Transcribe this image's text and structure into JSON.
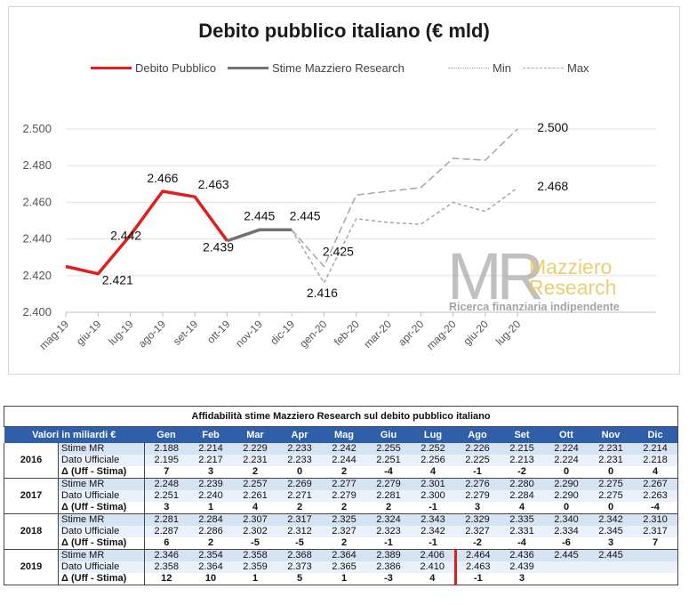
{
  "chart_data": {
    "type": "line",
    "title": "Debito pubblico italiano (€ mld)",
    "x": [
      "mag-19",
      "giu-19",
      "lug-19",
      "ago-19",
      "set-19",
      "ott-19",
      "nov-19",
      "dic-19",
      "gen-20",
      "feb-20",
      "mar-20",
      "apr-20",
      "mag-20",
      "giu-20",
      "lug-20"
    ],
    "ylim": [
      2400,
      2500
    ],
    "yticks": [
      "2.400",
      "2.420",
      "2.440",
      "2.460",
      "2.480",
      "2.500"
    ],
    "grid": true,
    "legend_position": "top",
    "series": [
      {
        "name": "Debito Pubblico",
        "color": "#e21d1d",
        "style": "solid",
        "values": [
          2425,
          2421,
          2442,
          2466,
          2463,
          2439,
          null,
          null,
          null,
          null,
          null,
          null,
          null,
          null,
          null
        ]
      },
      {
        "name": "Stime Mazziero Research",
        "color": "#777072",
        "style": "solid",
        "values": [
          null,
          null,
          null,
          null,
          null,
          2439,
          2445,
          2445,
          null,
          null,
          null,
          null,
          null,
          null,
          null
        ]
      },
      {
        "name": "Min",
        "color": "#a6a6a6",
        "style": "dotted",
        "values": [
          null,
          null,
          null,
          null,
          null,
          null,
          null,
          2445,
          2416,
          2451,
          2449,
          2448,
          2460,
          2455,
          2468
        ]
      },
      {
        "name": "Max",
        "color": "#a6a6a6",
        "style": "dashed",
        "values": [
          null,
          null,
          null,
          null,
          null,
          null,
          null,
          2445,
          2425,
          2464,
          2466,
          2468,
          2484,
          2483,
          2500
        ]
      }
    ],
    "data_labels": [
      {
        "x": "giu-19",
        "value": 2421,
        "text": "2.421"
      },
      {
        "x": "lug-19",
        "value": 2442,
        "text": "2.442"
      },
      {
        "x": "ago-19",
        "value": 2466,
        "text": "2.466"
      },
      {
        "x": "set-19",
        "value": 2463,
        "text": "2.463"
      },
      {
        "x": "ott-19",
        "value": 2439,
        "text": "2.439"
      },
      {
        "x": "nov-19",
        "value": 2445,
        "text": "2.445"
      },
      {
        "x": "dic-19",
        "value": 2445,
        "text": "2.445"
      },
      {
        "x": "gen-20",
        "value": 2425,
        "text": "2.425"
      },
      {
        "x": "gen-20",
        "value": 2416,
        "text": "2.416"
      },
      {
        "x": "lug-20",
        "value": 2500,
        "text": "2.500"
      },
      {
        "x": "lug-20",
        "value": 2468,
        "text": "2.468"
      }
    ]
  },
  "watermark": {
    "logo": "MR",
    "line1": "Mazziero",
    "line2": "Research",
    "tagline": "Ricerca finanziaria indipendente"
  },
  "table": {
    "title": "Affidabilità stime Mazziero Research sul debito pubblico italiano",
    "header_label": "Valori in miliardi €",
    "months": [
      "Gen",
      "Feb",
      "Mar",
      "Apr",
      "Mag",
      "Giu",
      "Lug",
      "Ago",
      "Set",
      "Ott",
      "Nov",
      "Dic"
    ],
    "row_labels": [
      "Stime MR",
      "Dato Ufficiale",
      "Δ (Uff - Stima)"
    ],
    "years": [
      {
        "year": "2016",
        "stime": [
          "2.188",
          "2.214",
          "2.229",
          "2.233",
          "2.242",
          "2.255",
          "2.252",
          "2.226",
          "2.215",
          "2.224",
          "2.231",
          "2.214"
        ],
        "ufficiale": [
          "2.195",
          "2.217",
          "2.231",
          "2.233",
          "2.244",
          "2.251",
          "2.256",
          "2.225",
          "2.213",
          "2.224",
          "2.231",
          "2.218"
        ],
        "delta": [
          "7",
          "3",
          "2",
          "0",
          "2",
          "-4",
          "4",
          "-1",
          "-2",
          "0",
          "0",
          "4"
        ]
      },
      {
        "year": "2017",
        "stime": [
          "2.248",
          "2.239",
          "2.257",
          "2.269",
          "2.277",
          "2.279",
          "2.301",
          "2.276",
          "2.280",
          "2.290",
          "2.275",
          "2.267"
        ],
        "ufficiale": [
          "2.251",
          "2.240",
          "2.261",
          "2.271",
          "2.279",
          "2.281",
          "2.300",
          "2.279",
          "2.284",
          "2.290",
          "2.275",
          "2.263"
        ],
        "delta": [
          "3",
          "1",
          "4",
          "2",
          "2",
          "2",
          "-1",
          "3",
          "4",
          "0",
          "0",
          "-4"
        ]
      },
      {
        "year": "2018",
        "stime": [
          "2.281",
          "2.284",
          "2.307",
          "2.317",
          "2.325",
          "2.324",
          "2.343",
          "2.329",
          "2.335",
          "2.340",
          "2.342",
          "2.310"
        ],
        "ufficiale": [
          "2.287",
          "2.286",
          "2.302",
          "2.312",
          "2.327",
          "2.323",
          "2.342",
          "2.327",
          "2.331",
          "2.334",
          "2.345",
          "2.317"
        ],
        "delta": [
          "6",
          "2",
          "-5",
          "-5",
          "2",
          "-1",
          "-1",
          "-2",
          "-4",
          "-6",
          "3",
          "7"
        ]
      },
      {
        "year": "2019",
        "stime": [
          "2.346",
          "2.354",
          "2.358",
          "2.368",
          "2.364",
          "2.389",
          "2.406",
          "2.464",
          "2.436",
          "2.445",
          "2.445",
          ""
        ],
        "ufficiale": [
          "2.358",
          "2.364",
          "2.359",
          "2.373",
          "2.365",
          "2.386",
          "2.410",
          "2.463",
          "2.439",
          "",
          "",
          ""
        ],
        "delta": [
          "12",
          "10",
          "1",
          "5",
          "1",
          "-3",
          "4",
          "-1",
          "3",
          "",
          "",
          ""
        ]
      }
    ]
  }
}
